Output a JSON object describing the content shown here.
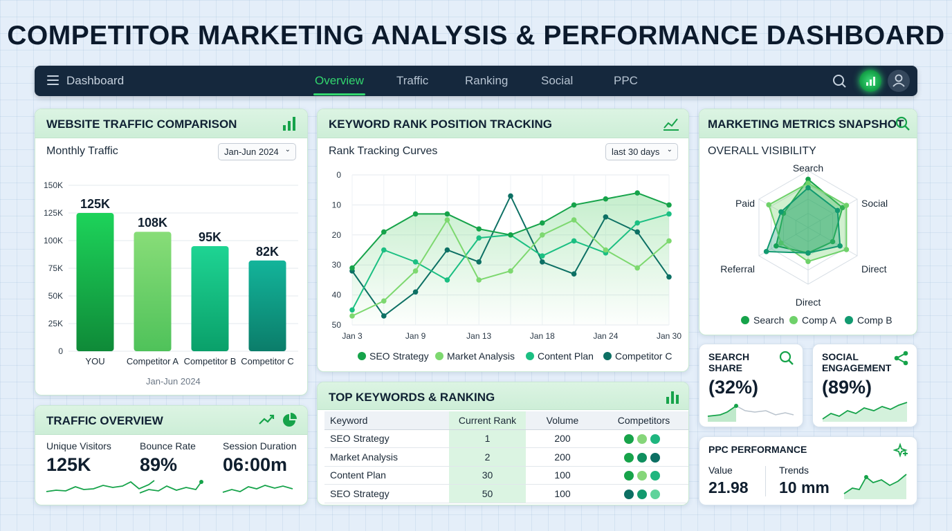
{
  "title": "COMPETITOR MARKETING ANALYSIS & PERFORMANCE DASHBOARD",
  "nav": {
    "brand": "Dashboard",
    "tabs": [
      "Overview",
      "Traffic",
      "Ranking",
      "Social",
      "PPC"
    ],
    "active_tab": "Overview"
  },
  "traffic_comparison": {
    "heading": "WEBSITE TRAFFIC COMPARISON",
    "subtitle": "Monthly Traffic",
    "range": "Jan-Jun 2024",
    "footer": "Jan-Jun 2024"
  },
  "rank_tracking": {
    "heading": "KEYWORD RANK POSITION TRACKING",
    "subtitle": "Rank Tracking Curves",
    "range": "last 30 days"
  },
  "metrics_snapshot": {
    "heading": "MARKETING METRICS SNAPSHOT",
    "subtitle": "OVERALL VISIBILITY"
  },
  "traffic_overview": {
    "heading": "TRAFFIC OVERVIEW",
    "items": [
      {
        "label": "Unique Visitors",
        "value": "125K"
      },
      {
        "label": "Bounce Rate",
        "value": "89%"
      },
      {
        "label": "Session Duration",
        "value": "06:00m"
      }
    ]
  },
  "top_keywords": {
    "heading": "TOP KEYWORDS & RANKING",
    "columns": [
      "Keyword",
      "Current Rank",
      "Volume",
      "Competitors"
    ],
    "rows": [
      {
        "keyword": "SEO Strategy",
        "rank": "1",
        "volume": "200",
        "dots": [
          "#17a34a",
          "#86d67a",
          "#1fb67f"
        ]
      },
      {
        "keyword": "Market Analysis",
        "rank": "2",
        "volume": "200",
        "dots": [
          "#17a34a",
          "#0f8f5f",
          "#0c6f63"
        ]
      },
      {
        "keyword": "Content Plan",
        "rank": "30",
        "volume": "100",
        "dots": [
          "#17a34a",
          "#86d67a",
          "#1fb67f"
        ]
      },
      {
        "keyword": "SEO Strategy",
        "rank": "50",
        "volume": "100",
        "dots": [
          "#0c6f63",
          "#139a6e",
          "#5fd39b"
        ]
      }
    ]
  },
  "search_share": {
    "heading_line1": "SEARCH",
    "heading_line2": "SHARE",
    "value": "(32%)"
  },
  "social_engagement": {
    "heading_line1": "SOCIAL",
    "heading_line2": "ENGAGEMENT",
    "value": "(89%)"
  },
  "ppc": {
    "heading": "PPC PERFORMANCE",
    "value_label": "Value",
    "value": "21.98",
    "trends_label": "Trends",
    "trends": "10 mm"
  },
  "colors": {
    "accent": "#32d66e",
    "nav_bg": "#15283d",
    "you": "#12b243",
    "comp_a": "#6fd16a",
    "comp_b": "#17c384",
    "comp_c": "#0f9a84"
  },
  "chart_data": [
    {
      "type": "bar",
      "title": "Monthly Traffic",
      "categories": [
        "YOU",
        "Competitor A",
        "Competitor B",
        "Competitor C"
      ],
      "values": [
        125000,
        108000,
        95000,
        82000
      ],
      "data_labels": [
        "125K",
        "108K",
        "95K",
        "82K"
      ],
      "yticks": [
        "150K",
        "125K",
        "100K",
        "75K",
        "50K",
        "25K",
        "0"
      ],
      "ylim": [
        0,
        150000
      ],
      "xlabel": "Jan-Jun 2024",
      "grid": true
    },
    {
      "type": "line",
      "title": "Rank Tracking Curves",
      "x": [
        "Jan 3",
        "Jan 6",
        "Jan 9",
        "Jan 11",
        "Jan 13",
        "Jan 15",
        "Jan 18",
        "Jan 21",
        "Jan 24",
        "Jan 27",
        "Jan 30"
      ],
      "xticks": [
        "Jan 3",
        "Jan 9",
        "Jan 13",
        "Jan 18",
        "Jan 24",
        "Jan 30"
      ],
      "yticks": [
        "0",
        "10",
        "20",
        "30",
        "40",
        "50"
      ],
      "ylim": [
        0,
        50
      ],
      "y_inverted": true,
      "series": [
        {
          "name": "SEO Strategy",
          "color": "#16a34a",
          "values": [
            31,
            19,
            13,
            13,
            18,
            20,
            16,
            10,
            8,
            6,
            10
          ]
        },
        {
          "name": "Market Analysis",
          "color": "#7dd86f",
          "values": [
            47,
            42,
            32,
            15,
            35,
            32,
            20,
            15,
            25,
            31,
            22
          ]
        },
        {
          "name": "Content Plan",
          "color": "#1bbf82",
          "values": [
            45,
            25,
            29,
            35,
            21,
            20,
            27,
            22,
            26,
            16,
            13
          ]
        },
        {
          "name": "Competitor C",
          "color": "#0d7064",
          "values": [
            32,
            47,
            39,
            25,
            29,
            7,
            29,
            33,
            14,
            19,
            34
          ]
        }
      ],
      "legend": "bottom",
      "grid": true
    },
    {
      "type": "radar",
      "title": "OVERALL VISIBILITY",
      "axes": [
        "Search",
        "Social",
        "Direct",
        "Direct",
        "Referral",
        "Paid"
      ],
      "series": [
        {
          "name": "Search",
          "color": "#16a34a",
          "values": [
            0.85,
            0.7,
            0.5,
            0.45,
            0.65,
            0.5
          ]
        },
        {
          "name": "Comp A",
          "color": "#6fd16a",
          "values": [
            0.78,
            0.78,
            0.78,
            0.6,
            0.55,
            0.8
          ]
        },
        {
          "name": "Comp B",
          "color": "#129a70",
          "values": [
            0.7,
            0.6,
            0.65,
            0.45,
            0.85,
            0.55
          ]
        }
      ],
      "legend": "bottom"
    }
  ]
}
